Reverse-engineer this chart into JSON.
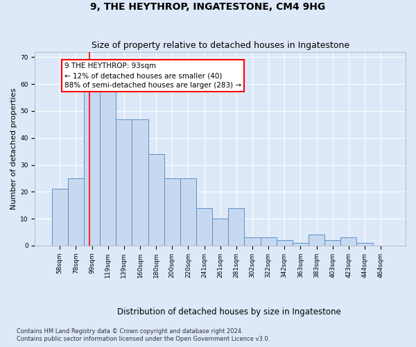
{
  "title": "9, THE HEYTHROP, INGATESTONE, CM4 9HG",
  "subtitle": "Size of property relative to detached houses in Ingatestone",
  "xlabel": "Distribution of detached houses by size in Ingatestone",
  "ylabel": "Number of detached properties",
  "categories": [
    "58sqm",
    "78sqm",
    "99sqm",
    "119sqm",
    "139sqm",
    "160sqm",
    "180sqm",
    "200sqm",
    "220sqm",
    "241sqm",
    "261sqm",
    "281sqm",
    "302sqm",
    "322sqm",
    "342sqm",
    "363sqm",
    "383sqm",
    "403sqm",
    "423sqm",
    "444sqm",
    "464sqm"
  ],
  "values": [
    21,
    25,
    58,
    58,
    47,
    47,
    34,
    25,
    25,
    14,
    10,
    14,
    3,
    3,
    2,
    1,
    4,
    2,
    3,
    1,
    0
  ],
  "bar_color": "#c6d9f0",
  "bar_edge_color": "#5b8fc9",
  "bar_edge_width": 0.7,
  "red_line_x": 1.85,
  "annotation_text": "9 THE HEYTHROP: 93sqm\n← 12% of detached houses are smaller (40)\n88% of semi-detached houses are larger (283) →",
  "ylim": [
    0,
    72
  ],
  "yticks": [
    0,
    10,
    20,
    30,
    40,
    50,
    60,
    70
  ],
  "footer1": "Contains HM Land Registry data © Crown copyright and database right 2024.",
  "footer2": "Contains public sector information licensed under the Open Government Licence v3.0.",
  "bg_color": "#dde8f8",
  "title_fontsize": 10,
  "subtitle_fontsize": 9,
  "ylabel_fontsize": 8,
  "xlabel_fontsize": 8.5,
  "tick_fontsize": 6.5,
  "annot_fontsize": 7.5,
  "footer_fontsize": 6
}
